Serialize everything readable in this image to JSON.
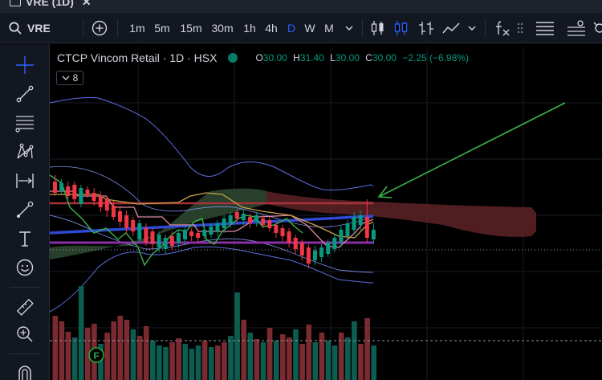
{
  "tab": {
    "title": "VRE (1D)",
    "close": "✕"
  },
  "toolbar": {
    "symbol": "VRE",
    "intervals": [
      "1m",
      "5m",
      "15m",
      "30m",
      "1h",
      "4h",
      "D",
      "W",
      "M"
    ],
    "active_interval": "D",
    "chevron": "⌄"
  },
  "legend": {
    "title": "CTCP Vincom Retail · 1D · HSX",
    "open_label": "O",
    "open": "30.00",
    "high_label": "H",
    "high": "31.40",
    "low_label": "L",
    "low": "30.00",
    "close_label": "C",
    "close": "30.00",
    "change": "−2.25 (−6.98%)",
    "indicator_count": "8"
  },
  "colors": {
    "up": "#089981",
    "down": "#f23645",
    "accent": "#2962ff",
    "panel": "#131722"
  },
  "icons": {
    "sidebar": [
      "crosshair-icon",
      "trend-line-icon",
      "fib-retracement-icon",
      "pattern-icon",
      "measure-range-icon",
      "brush-icon",
      "text-icon",
      "emoji-icon",
      "ruler-icon",
      "zoom-in-icon",
      "magnet-icon"
    ],
    "toolbar": [
      "search-icon",
      "add-symbol-icon",
      "candles-icon",
      "hollow-candles-icon",
      "bars-icon",
      "line-icon",
      "indicators-icon",
      "drag-handle-icon",
      "menu-icon",
      "layout-icon",
      "settings-icon"
    ]
  },
  "volume_marker": "F"
}
